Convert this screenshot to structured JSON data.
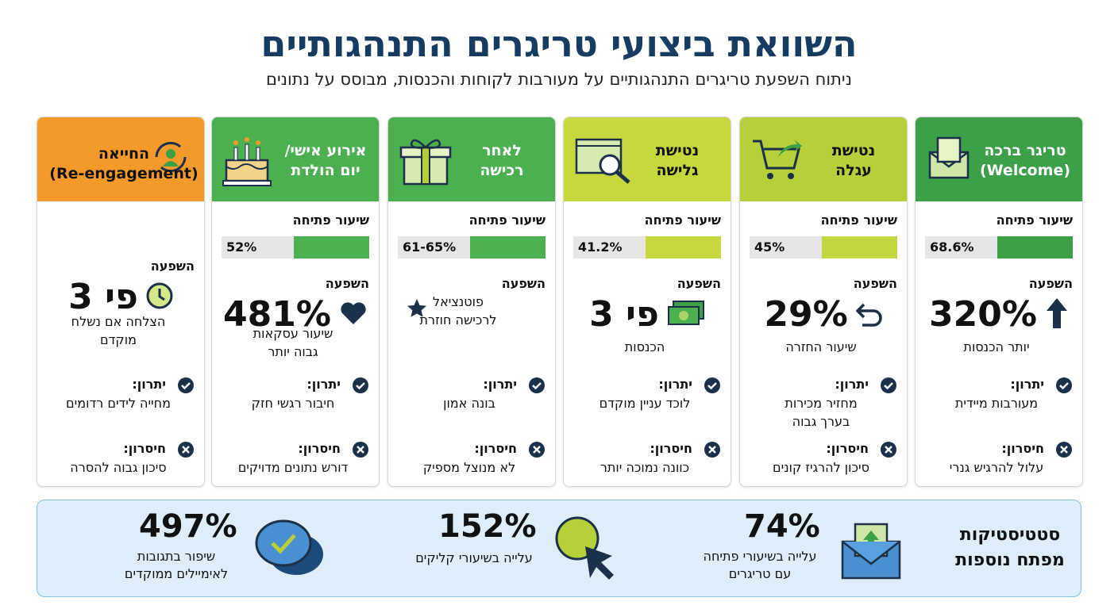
{
  "header": {
    "title": "השוואת ביצועי טריגרים התנהגותיים",
    "subtitle": "ניתוח השפעת טריגרים התנהגותיים על מעורבות לקוחות והכנסות, מבוסס על נתונים"
  },
  "labels": {
    "open_rate": "שיעור פתיחה",
    "impact": "השפעה",
    "advantage": "יתרון:",
    "disadvantage": "חיסרון:"
  },
  "cards": [
    {
      "title": [
        "טריגר ברכה",
        "(Welcome)"
      ],
      "open_rate": "68.6%",
      "impact": "320%",
      "impact_text": [
        "יותר הכנסות"
      ],
      "advantage": [
        "מעורבות מיידית"
      ],
      "disadvantage": [
        "עלול להרגיש גנרי"
      ]
    },
    {
      "title": [
        "נטישת",
        "עגלה"
      ],
      "open_rate": "45%",
      "impact": "29%",
      "impact_text": [
        "שיעור החזרה"
      ],
      "advantage": [
        "מחזיר מכירות",
        "בערך גבוה"
      ],
      "disadvantage": [
        "סיכון להרגיז קונים"
      ]
    },
    {
      "title": [
        "נטישת",
        "גלישה"
      ],
      "open_rate": "41.2%",
      "impact": "פי 3",
      "impact_text": [
        "הכנסות"
      ],
      "advantage": [
        "לוכד עניין מוקדם"
      ],
      "disadvantage": [
        "כוונה נמוכה יותר"
      ]
    },
    {
      "title": [
        "לאחר",
        "רכישה"
      ],
      "open_rate": "61-65%",
      "impact_text": [
        "פוטנציאל",
        "לרכישה חוזרת"
      ],
      "advantage": [
        "בונה אמון"
      ],
      "disadvantage": [
        "לא מנוצל מספיק"
      ]
    },
    {
      "title": [
        "אירוע אישי/",
        "יום הולדת"
      ],
      "open_rate": "52%",
      "impact": "481%",
      "impact_text": [
        "שיעור עסקאות",
        "גבוה יותר"
      ],
      "advantage": [
        "חיבור רגשי חזק"
      ],
      "disadvantage": [
        "דורש נתונים מדויקים"
      ]
    },
    {
      "title": [
        "החייאה",
        "(Re-engagement)"
      ],
      "impact": "פי 3",
      "impact_text": [
        "הצלחה אם נשלח",
        "מוקדם"
      ],
      "advantage": [
        "מחייה לידים רדומים"
      ],
      "disadvantage": [
        "סיכון גבוה להסרה"
      ]
    }
  ],
  "footer": {
    "title": [
      "סטטיסטיקות",
      "מפתח נוספות"
    ],
    "stats": [
      {
        "value": "74%",
        "text": [
          "עלייה בשיעורי פתיחה",
          "עם טריגרים"
        ]
      },
      {
        "value": "152%",
        "text": [
          "עלייה בשיעורי קליקים"
        ]
      },
      {
        "value": "497%",
        "text": [
          "שיפור בתגובות",
          "לאימיילים ממוקדים"
        ]
      }
    ]
  }
}
